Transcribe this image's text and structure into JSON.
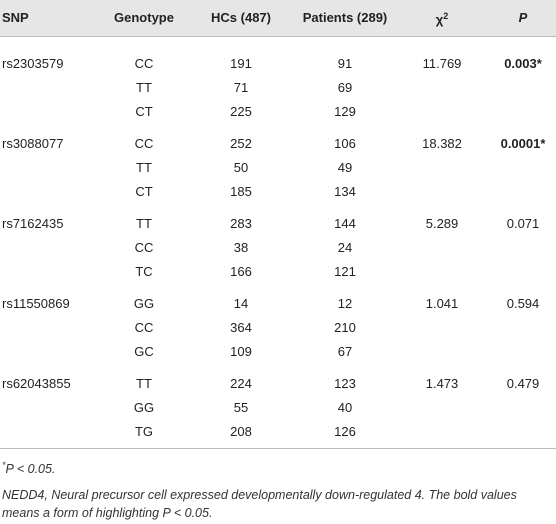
{
  "table": {
    "header": {
      "snp": "SNP",
      "genotype": "Genotype",
      "hcs": "HCs (487)",
      "patients": "Patients (289)",
      "chi2": {
        "symbol": "χ",
        "sup": "2"
      },
      "p": "P"
    },
    "groups": [
      {
        "snp": "rs2303579",
        "chi2": "11.769",
        "p": "0.003*",
        "p_bold": true,
        "rows": [
          [
            "CC",
            "191",
            "91"
          ],
          [
            "TT",
            "71",
            "69"
          ],
          [
            "CT",
            "225",
            "129"
          ]
        ]
      },
      {
        "snp": "rs3088077",
        "chi2": "18.382",
        "p": "0.0001*",
        "p_bold": true,
        "rows": [
          [
            "CC",
            "252",
            "106"
          ],
          [
            "TT",
            "50",
            "49"
          ],
          [
            "CT",
            "185",
            "134"
          ]
        ]
      },
      {
        "snp": "rs7162435",
        "chi2": "5.289",
        "p": "0.071",
        "p_bold": false,
        "rows": [
          [
            "TT",
            "283",
            "144"
          ],
          [
            "CC",
            "38",
            "24"
          ],
          [
            "TC",
            "166",
            "121"
          ]
        ]
      },
      {
        "snp": "rs11550869",
        "chi2": "1.041",
        "p": "0.594",
        "p_bold": false,
        "rows": [
          [
            "GG",
            "14",
            "12"
          ],
          [
            "CC",
            "364",
            "210"
          ],
          [
            "GC",
            "109",
            "67"
          ]
        ]
      },
      {
        "snp": "rs62043855",
        "chi2": "1.473",
        "p": "0.479",
        "p_bold": false,
        "rows": [
          [
            "TT",
            "224",
            "123"
          ],
          [
            "GG",
            "55",
            "40"
          ],
          [
            "TG",
            "208",
            "126"
          ]
        ]
      }
    ]
  },
  "footnotes": {
    "significance": {
      "mark": "*",
      "text": "P < 0.05."
    },
    "abbreviation": "NEDD4, Neural precursor cell expressed developmentally down-regulated 4. The bold values means a form of highlighting P < 0.05."
  }
}
